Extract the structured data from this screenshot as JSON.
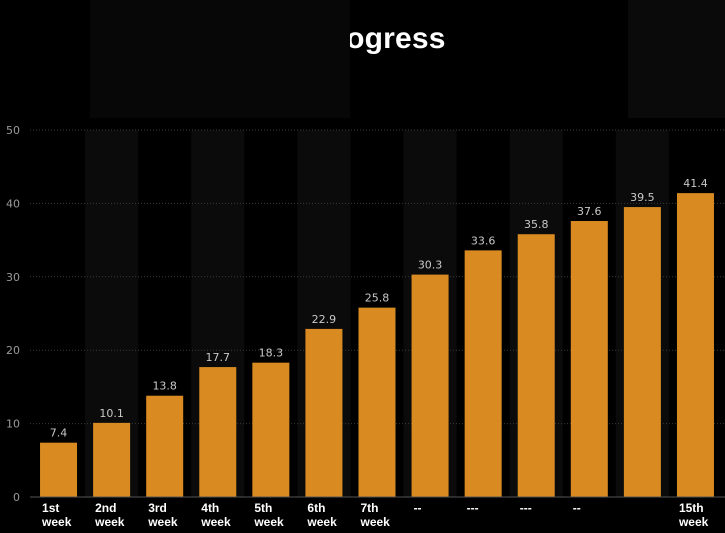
{
  "chart_data": {
    "type": "bar",
    "title": "Weekly Result Progress",
    "categories": [
      "1st week",
      "2nd week",
      "3rd week",
      "4th week",
      "5th week",
      "6th week",
      "7th week",
      "--",
      "---",
      "---",
      "--",
      "",
      "15th week"
    ],
    "values": [
      7.4,
      10.1,
      13.8,
      17.7,
      18.3,
      22.9,
      25.8,
      30.3,
      33.6,
      35.8,
      37.6,
      39.5,
      41.4
    ],
    "data_labels": [
      "7.4",
      "10.1",
      "13.8",
      "17.7",
      "18.3",
      "22.9",
      "25.8",
      "30.3",
      "33.6",
      "35.8",
      "37.6",
      "39.5",
      "41.4"
    ],
    "yticks": [
      "0",
      "10",
      "20",
      "30",
      "40",
      "50"
    ],
    "ylim": [
      0,
      50
    ],
    "grid": true,
    "bar_color": "#d98b22",
    "background": "#000000"
  }
}
